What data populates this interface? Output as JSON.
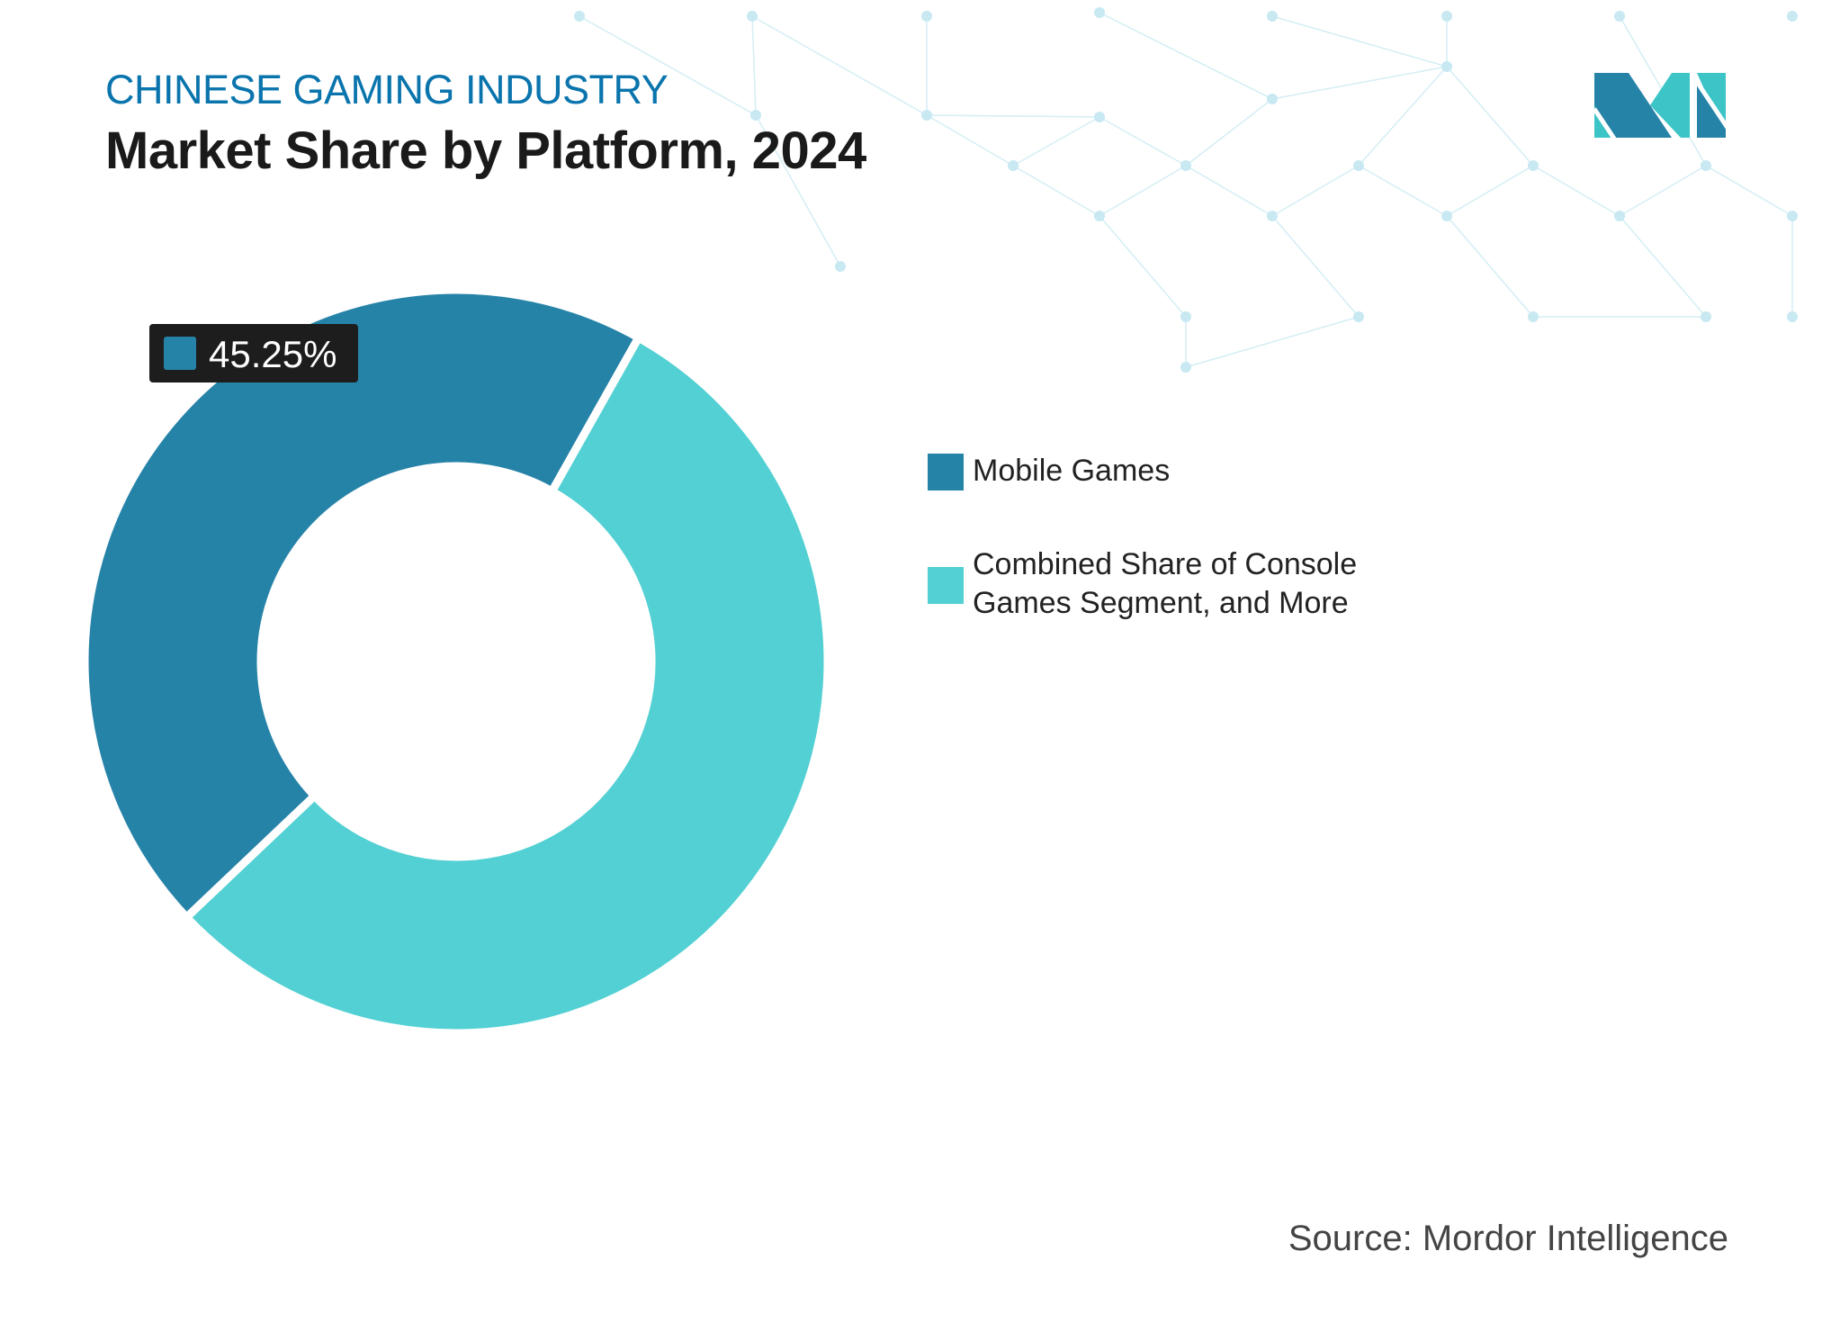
{
  "header": {
    "subtitle": "CHINESE GAMING INDUSTRY",
    "title": "Market Share by Platform, 2024"
  },
  "source": "Source: Mordor Intelligence",
  "logo": {
    "text": "MI"
  },
  "colors": {
    "mobile": "#2683a8",
    "other": "#52d0d3",
    "subtitle": "#0a74ad",
    "label_bg": "#1d1d1d"
  },
  "chart_data": {
    "type": "pie",
    "variant": "donut",
    "title": "Market Share by Platform, 2024",
    "categories": [
      "Mobile Games",
      "Combined Share of Console Games Segment, and More"
    ],
    "values": [
      45.25,
      54.75
    ],
    "data_labels": [
      "45.25%",
      ""
    ],
    "legend_position": "right",
    "legend": [
      "Mobile Games",
      "Combined Share of Console Games Segment, and More"
    ],
    "legend_lines": [
      [
        "Mobile Games"
      ],
      [
        "Combined Share of Console",
        "Games Segment, and More"
      ]
    ]
  }
}
